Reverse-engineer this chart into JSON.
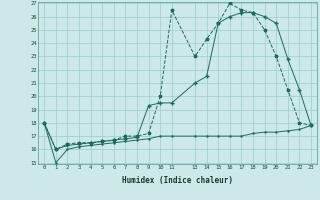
{
  "xlabel": "Humidex (Indice chaleur)",
  "bg_color": "#cce8e8",
  "grid_color": "#99cccc",
  "line_color": "#1a6b5a",
  "ylim": [
    15,
    27
  ],
  "xlim": [
    -0.5,
    23.5
  ],
  "yticks": [
    15,
    16,
    17,
    18,
    19,
    20,
    21,
    22,
    23,
    24,
    25,
    26,
    27
  ],
  "xticks": [
    0,
    1,
    2,
    3,
    4,
    5,
    6,
    7,
    8,
    9,
    10,
    11,
    13,
    14,
    15,
    16,
    17,
    18,
    19,
    20,
    21,
    22,
    23
  ],
  "series1_x": [
    0,
    1,
    2,
    3,
    4,
    5,
    6,
    7,
    8,
    9,
    10,
    11,
    13,
    14,
    15,
    16,
    17,
    18,
    19,
    20,
    21,
    22,
    23
  ],
  "series1_y": [
    18,
    16,
    16.4,
    16.5,
    16.5,
    16.6,
    16.7,
    17.0,
    17.0,
    17.2,
    20.0,
    26.5,
    23.0,
    24.3,
    25.5,
    27.0,
    26.5,
    26.3,
    25.0,
    23.0,
    20.5,
    18.0,
    17.8
  ],
  "series2_x": [
    0,
    1,
    2,
    3,
    4,
    5,
    6,
    7,
    8,
    9,
    10,
    11,
    13,
    14,
    15,
    16,
    17,
    18,
    19,
    20,
    21,
    22,
    23
  ],
  "series2_y": [
    18,
    16,
    16.3,
    16.4,
    16.5,
    16.6,
    16.7,
    16.8,
    16.9,
    19.3,
    19.5,
    19.5,
    21.0,
    21.5,
    25.5,
    26.0,
    26.3,
    26.3,
    26.0,
    25.5,
    22.8,
    20.5,
    17.8
  ],
  "series3_x": [
    0,
    1,
    2,
    3,
    4,
    5,
    6,
    7,
    8,
    9,
    10,
    11,
    13,
    14,
    15,
    16,
    17,
    18,
    19,
    20,
    21,
    22,
    23
  ],
  "series3_y": [
    18,
    15,
    16.0,
    16.2,
    16.3,
    16.4,
    16.5,
    16.6,
    16.7,
    16.8,
    17.0,
    17.0,
    17.0,
    17.0,
    17.0,
    17.0,
    17.0,
    17.2,
    17.3,
    17.3,
    17.4,
    17.5,
    17.8
  ]
}
